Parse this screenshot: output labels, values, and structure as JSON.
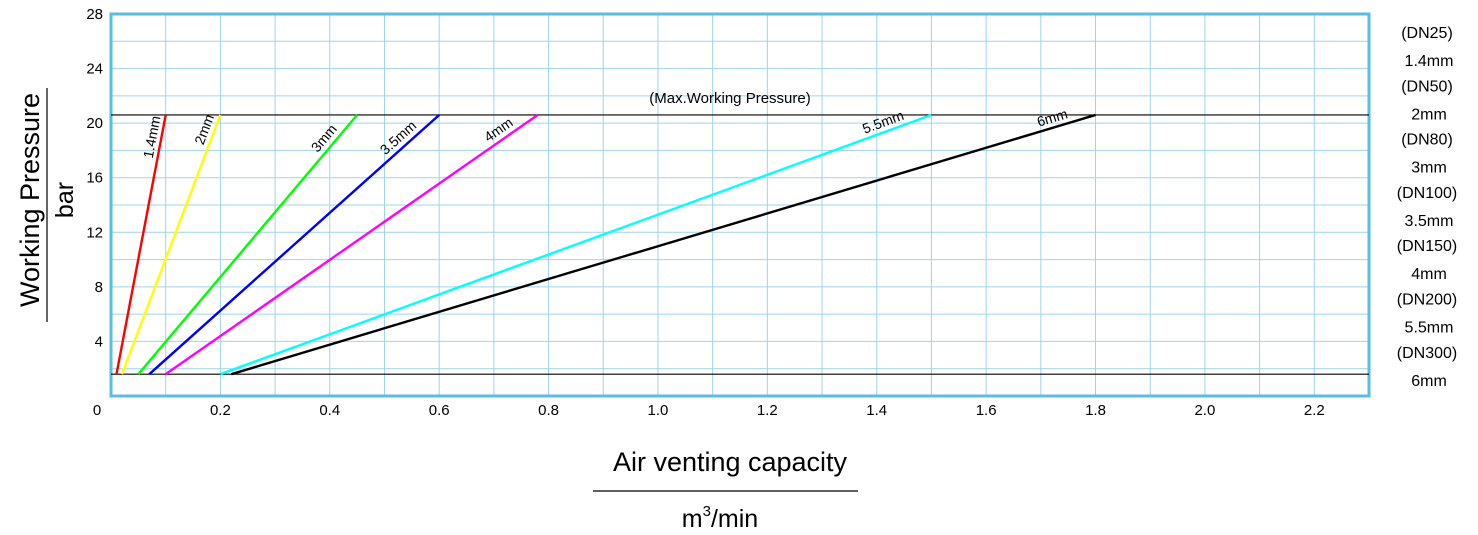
{
  "chart_data": {
    "type": "line",
    "xlabel": "Air venting capacity",
    "xunit": {
      "base": "m",
      "sup": "3",
      "rest": "/min"
    },
    "ylabel": "Working Pressure",
    "yunit": "bar",
    "xlim": [
      0,
      2.3
    ],
    "ylim": [
      0,
      28
    ],
    "x_ticks": [
      0,
      0.2,
      0.4,
      0.6,
      0.8,
      1.0,
      1.2,
      1.4,
      1.6,
      1.8,
      2.0,
      2.2
    ],
    "x_tick_labels": [
      "0",
      "0.2",
      "0.4",
      "0.6",
      "0.8",
      "1.0",
      "1.2",
      "1.4",
      "1.6",
      "1.8",
      "2.0",
      "2.2"
    ],
    "y_ticks": [
      4,
      8,
      12,
      16,
      20,
      24,
      28
    ],
    "y_tick_labels": [
      "4",
      "8",
      "12",
      "16",
      "20",
      "24",
      "28"
    ],
    "grid": true,
    "grid_step_x": 0.1,
    "grid_step_y": 2,
    "grid_color": "#9fd4ea",
    "frame_color": "#5bbde0",
    "reference_lines": [
      {
        "y": 20.6,
        "label": "(Max.Working Pressure)"
      },
      {
        "y": 1.6,
        "label": ""
      }
    ],
    "series": [
      {
        "name": "1.4mm",
        "color": "#ff0000",
        "x": [
          0.01,
          0.1
        ],
        "y": [
          1.6,
          20.6
        ]
      },
      {
        "name": "2mm",
        "color": "#ffff00",
        "x": [
          0.02,
          0.2
        ],
        "y": [
          1.6,
          20.6
        ]
      },
      {
        "name": "3mm",
        "color": "#00ff00",
        "x": [
          0.05,
          0.45
        ],
        "y": [
          1.6,
          20.6
        ]
      },
      {
        "name": "3.5mm",
        "color": "#0000ff",
        "x": [
          0.07,
          0.6
        ],
        "y": [
          1.6,
          20.6
        ]
      },
      {
        "name": "4mm",
        "color": "#ff00ff",
        "x": [
          0.1,
          0.78
        ],
        "y": [
          1.6,
          20.6
        ]
      },
      {
        "name": "5.5mm",
        "color": "#00ffff",
        "x": [
          0.2,
          1.5
        ],
        "y": [
          1.6,
          20.6
        ]
      },
      {
        "name": "6mm",
        "color": "#000000",
        "x": [
          0.22,
          1.8
        ],
        "y": [
          1.6,
          20.6
        ]
      }
    ],
    "legend": {
      "placement": "right",
      "entries": [
        {
          "dn": "(DN25)",
          "size": "1.4mm"
        },
        {
          "dn": "(DN50)",
          "size": "2mm"
        },
        {
          "dn": "(DN80)",
          "size": "3mm"
        },
        {
          "dn": "(DN100)",
          "size": "3.5mm"
        },
        {
          "dn": "(DN150)",
          "size": "4mm"
        },
        {
          "dn": "(DN200)",
          "size": "5.5mm"
        },
        {
          "dn": "(DN300)",
          "size": "6mm"
        }
      ]
    }
  }
}
